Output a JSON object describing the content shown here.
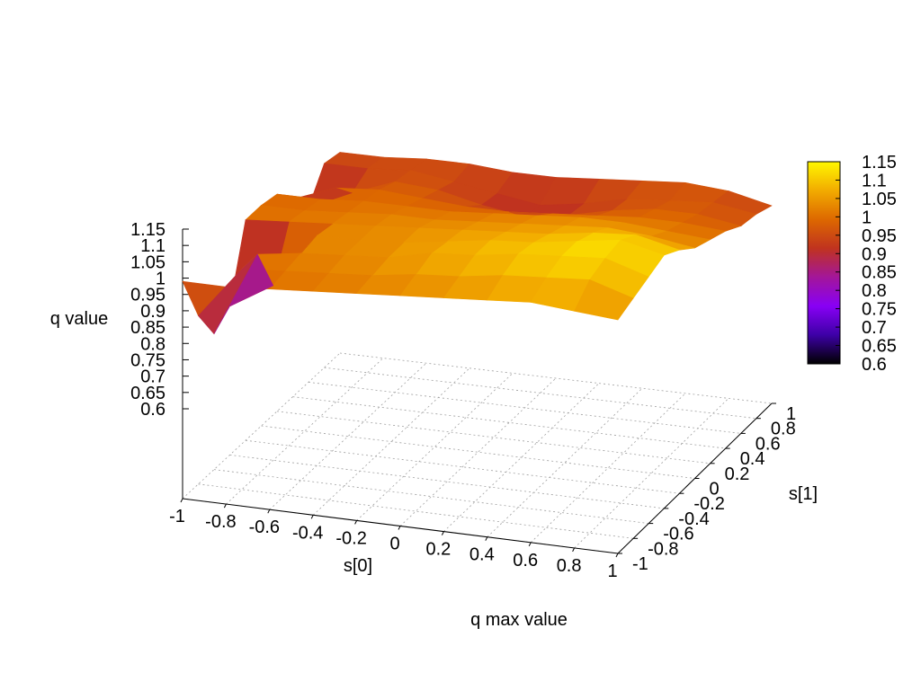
{
  "chart_data": {
    "type": "surface",
    "title": "q max value",
    "xlabel": "s[0]",
    "ylabel": "s[1]",
    "zlabel": "q value",
    "xlim": [
      -1,
      1
    ],
    "ylim": [
      -1,
      1
    ],
    "zlim": [
      0.6,
      1.15
    ],
    "x_ticks": [
      "-1",
      "-0.8",
      "-0.6",
      "-0.4",
      "-0.2",
      "0",
      "0.2",
      "0.4",
      "0.6",
      "0.8",
      "1"
    ],
    "y_ticks": [
      "-1",
      "-0.8",
      "-0.6",
      "-0.4",
      "-0.2",
      "0",
      "0.2",
      "0.4",
      "0.6",
      "0.8",
      "1"
    ],
    "z_ticks": [
      "0.6",
      "0.65",
      "0.7",
      "0.75",
      "0.8",
      "0.85",
      "0.9",
      "0.95",
      "1",
      "1.05",
      "1.1",
      "1.15"
    ],
    "colorbar": {
      "min": 0.6,
      "max": 1.15,
      "ticks": [
        "0.6",
        "0.65",
        "0.7",
        "0.75",
        "0.8",
        "0.85",
        "0.9",
        "0.95",
        "1",
        "1.05",
        "1.1",
        "1.15"
      ],
      "palette": [
        "#000000",
        "#3d00a6",
        "#8800f5",
        "#a3169a",
        "#c0331f",
        "#dd6800",
        "#f2ab00",
        "#fff700"
      ]
    },
    "grid": true,
    "s0": [
      -1,
      -0.8,
      -0.6,
      -0.4,
      -0.2,
      0,
      0.2,
      0.4,
      0.6,
      0.8,
      1
    ],
    "s1": [
      -1,
      -0.8,
      -0.6,
      -0.4,
      -0.2,
      0,
      0.2,
      0.4,
      0.6,
      0.8,
      1
    ],
    "z": [
      [
        0.99,
        0.99,
        1.0,
        1.01,
        1.02,
        1.03,
        1.04,
        1.05,
        1.06,
        1.05,
        1.04
      ],
      [
        0.84,
        1.0,
        1.01,
        1.02,
        1.03,
        1.05,
        1.06,
        1.08,
        1.09,
        1.1,
        1.06
      ],
      [
        0.74,
        1.0,
        1.02,
        1.03,
        1.04,
        1.07,
        1.08,
        1.1,
        1.11,
        1.12,
        1.08
      ],
      [
        0.78,
        0.86,
        1.03,
        1.03,
        1.04,
        1.06,
        1.08,
        1.09,
        1.11,
        1.13,
        1.1
      ],
      [
        1.0,
        1.01,
        1.02,
        1.03,
        1.04,
        1.05,
        1.06,
        1.07,
        1.09,
        1.1,
        1.07
      ],
      [
        1.0,
        1.0,
        1.01,
        1.02,
        1.02,
        1.03,
        1.04,
        1.05,
        1.06,
        1.05,
        1.03
      ],
      [
        0.99,
        0.99,
        1.0,
        1.0,
        1.0,
        1.01,
        1.02,
        1.03,
        1.03,
        1.02,
        1.01
      ],
      [
        0.93,
        0.98,
        0.99,
        0.98,
        0.97,
        0.97,
        0.98,
        0.99,
        1.0,
        1.0,
        0.99
      ],
      [
        0.86,
        0.92,
        0.97,
        0.96,
        0.93,
        0.91,
        0.93,
        0.96,
        0.98,
        0.98,
        0.96
      ],
      [
        0.95,
        0.95,
        0.96,
        0.94,
        0.92,
        0.9,
        0.92,
        0.95,
        0.96,
        0.97,
        0.95
      ],
      [
        0.94,
        0.94,
        0.95,
        0.95,
        0.94,
        0.94,
        0.95,
        0.96,
        0.97,
        0.96,
        0.93
      ]
    ]
  }
}
